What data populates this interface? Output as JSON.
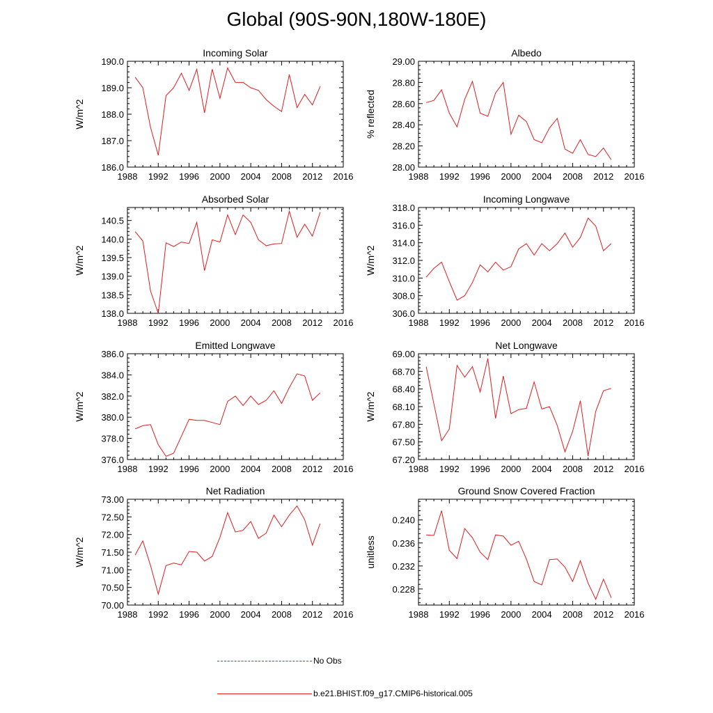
{
  "page": {
    "title": "Global (90S-90N,180W-180E)"
  },
  "legend": {
    "entries": [
      {
        "label": "No Obs",
        "color": "#3b4fd0",
        "style": "dashed"
      },
      {
        "label": "b.e21.BHIST.f09_g17.CMIP6-historical.005",
        "color": "#e41a1c",
        "style": "solid"
      }
    ]
  },
  "chart_data": [
    {
      "type": "line",
      "title": "Incoming Solar",
      "ylabel": "W/m^2",
      "xlim": [
        1988,
        2016
      ],
      "ylim": [
        186.0,
        190.0
      ],
      "xticks": [
        1988,
        1992,
        1996,
        2000,
        2004,
        2008,
        2012,
        2016
      ],
      "xtick_labels": [
        "1988",
        "1992",
        "1996",
        "2000",
        "2004",
        "2008",
        "2012",
        "2016"
      ],
      "yticks": [
        186.0,
        187.0,
        188.0,
        189.0,
        190.0
      ],
      "ytick_labels": [
        "186.0",
        "187.0",
        "188.0",
        "189.0",
        "190.0"
      ],
      "series": [
        {
          "name": "b.e21.BHIST.f09_g17.CMIP6-historical.005",
          "color": "#e41a1c",
          "x": [
            1989,
            1990,
            1991,
            1992,
            1993,
            1994,
            1995,
            1996,
            1997,
            1998,
            1999,
            2000,
            2001,
            2002,
            2003,
            2004,
            2005,
            2006,
            2007,
            2008,
            2009,
            2010,
            2011,
            2012,
            2013
          ],
          "values": [
            189.4,
            189.0,
            187.5,
            186.45,
            188.7,
            189.0,
            189.55,
            188.9,
            189.7,
            188.05,
            189.7,
            188.6,
            189.75,
            189.2,
            189.2,
            189.0,
            188.9,
            188.55,
            188.3,
            188.1,
            189.5,
            188.25,
            188.75,
            188.35,
            189.05
          ]
        }
      ]
    },
    {
      "type": "line",
      "title": "Albedo",
      "ylabel": "% reflected",
      "xlim": [
        1988,
        2016
      ],
      "ylim": [
        28.0,
        29.0
      ],
      "xticks": [
        1988,
        1992,
        1996,
        2000,
        2004,
        2008,
        2012,
        2016
      ],
      "xtick_labels": [
        "1988",
        "1992",
        "1996",
        "2000",
        "2004",
        "2008",
        "2012",
        "2016"
      ],
      "yticks": [
        28.0,
        28.2,
        28.4,
        28.6,
        28.8,
        29.0
      ],
      "ytick_labels": [
        "28.00",
        "28.20",
        "28.40",
        "28.60",
        "28.80",
        "29.00"
      ],
      "series": [
        {
          "name": "b.e21.BHIST.f09_g17.CMIP6-historical.005",
          "color": "#e41a1c",
          "x": [
            1989,
            1990,
            1991,
            1992,
            1993,
            1994,
            1995,
            1996,
            1997,
            1998,
            1999,
            2000,
            2001,
            2002,
            2003,
            2004,
            2005,
            2006,
            2007,
            2008,
            2009,
            2010,
            2011,
            2012,
            2013
          ],
          "values": [
            28.61,
            28.63,
            28.73,
            28.51,
            28.38,
            28.64,
            28.81,
            28.51,
            28.48,
            28.7,
            28.8,
            28.31,
            28.49,
            28.43,
            28.26,
            28.23,
            28.37,
            28.46,
            28.17,
            28.13,
            28.26,
            28.12,
            28.1,
            28.18,
            28.07
          ]
        }
      ]
    },
    {
      "type": "line",
      "title": "Absorbed Solar",
      "ylabel": "W/m^2",
      "xlim": [
        1988,
        2016
      ],
      "ylim": [
        138.0,
        140.85
      ],
      "xticks": [
        1988,
        1992,
        1996,
        2000,
        2004,
        2008,
        2012,
        2016
      ],
      "xtick_labels": [
        "1988",
        "1992",
        "1996",
        "2000",
        "2004",
        "2008",
        "2012",
        "2016"
      ],
      "yticks": [
        138.0,
        138.5,
        139.0,
        139.5,
        140.0,
        140.5
      ],
      "ytick_labels": [
        "138.0",
        "138.5",
        "139.0",
        "139.5",
        "140.0",
        "140.5"
      ],
      "series": [
        {
          "name": "b.e21.BHIST.f09_g17.CMIP6-historical.005",
          "color": "#e41a1c",
          "x": [
            1989,
            1990,
            1991,
            1992,
            1993,
            1994,
            1995,
            1996,
            1997,
            1998,
            1999,
            2000,
            2001,
            2002,
            2003,
            2004,
            2005,
            2006,
            2007,
            2008,
            2009,
            2010,
            2011,
            2012,
            2013
          ],
          "values": [
            140.2,
            139.95,
            138.6,
            138.0,
            139.9,
            139.8,
            139.92,
            139.88,
            140.45,
            139.15,
            139.98,
            139.92,
            140.65,
            140.12,
            140.65,
            140.45,
            139.98,
            139.82,
            139.87,
            139.88,
            140.75,
            140.05,
            140.4,
            140.08,
            140.72
          ]
        }
      ]
    },
    {
      "type": "line",
      "title": "Incoming Longwave",
      "ylabel": "W/m^2",
      "xlim": [
        1988,
        2016
      ],
      "ylim": [
        306.0,
        318.0
      ],
      "xticks": [
        1988,
        1992,
        1996,
        2000,
        2004,
        2008,
        2012,
        2016
      ],
      "xtick_labels": [
        "1988",
        "1992",
        "1996",
        "2000",
        "2004",
        "2008",
        "2012",
        "2016"
      ],
      "yticks": [
        306.0,
        308.0,
        310.0,
        312.0,
        314.0,
        316.0,
        318.0
      ],
      "ytick_labels": [
        "306.0",
        "308.0",
        "310.0",
        "312.0",
        "314.0",
        "316.0",
        "318.0"
      ],
      "series": [
        {
          "name": "b.e21.BHIST.f09_g17.CMIP6-historical.005",
          "color": "#e41a1c",
          "x": [
            1989,
            1990,
            1991,
            1992,
            1993,
            1994,
            1995,
            1996,
            1997,
            1998,
            1999,
            2000,
            2001,
            2002,
            2003,
            2004,
            2005,
            2006,
            2007,
            2008,
            2009,
            2010,
            2011,
            2012,
            2013
          ],
          "values": [
            310.1,
            311.1,
            311.8,
            309.6,
            307.5,
            308.0,
            309.5,
            311.5,
            310.7,
            311.8,
            310.9,
            311.3,
            313.3,
            313.9,
            312.6,
            313.9,
            313.1,
            313.9,
            315.1,
            313.5,
            314.6,
            316.8,
            315.9,
            313.1,
            313.9
          ]
        }
      ]
    },
    {
      "type": "line",
      "title": "Emitted Longwave",
      "ylabel": "W/m^2",
      "xlim": [
        1988,
        2016
      ],
      "ylim": [
        376.0,
        386.0
      ],
      "xticks": [
        1988,
        1992,
        1996,
        2000,
        2004,
        2008,
        2012,
        2016
      ],
      "xtick_labels": [
        "1988",
        "1992",
        "1996",
        "2000",
        "2004",
        "2008",
        "2012",
        "2016"
      ],
      "yticks": [
        376.0,
        378.0,
        380.0,
        382.0,
        384.0,
        386.0
      ],
      "ytick_labels": [
        "376.0",
        "378.0",
        "380.0",
        "382.0",
        "384.0",
        "386.0"
      ],
      "series": [
        {
          "name": "b.e21.BHIST.f09_g17.CMIP6-historical.005",
          "color": "#e41a1c",
          "x": [
            1989,
            1990,
            1991,
            1992,
            1993,
            1994,
            1995,
            1996,
            1997,
            1998,
            1999,
            2000,
            2001,
            2002,
            2003,
            2004,
            2005,
            2006,
            2007,
            2008,
            2009,
            2010,
            2011,
            2012,
            2013
          ],
          "values": [
            378.9,
            379.2,
            379.3,
            377.4,
            376.3,
            376.6,
            378.2,
            379.8,
            379.7,
            379.7,
            379.5,
            379.3,
            381.5,
            382.0,
            381.1,
            382.0,
            381.2,
            381.6,
            382.5,
            381.3,
            382.8,
            384.1,
            383.9,
            381.6,
            382.3
          ]
        }
      ]
    },
    {
      "type": "line",
      "title": "Net Longwave",
      "ylabel": "W/m^2",
      "xlim": [
        1988,
        2016
      ],
      "ylim": [
        67.2,
        69.0
      ],
      "xticks": [
        1988,
        1992,
        1996,
        2000,
        2004,
        2008,
        2012,
        2016
      ],
      "xtick_labels": [
        "1988",
        "1992",
        "1996",
        "2000",
        "2004",
        "2008",
        "2012",
        "2016"
      ],
      "yticks": [
        67.2,
        67.5,
        67.8,
        68.1,
        68.4,
        68.7,
        69.0
      ],
      "ytick_labels": [
        "67.20",
        "67.50",
        "67.80",
        "68.10",
        "68.40",
        "68.70",
        "69.00"
      ],
      "series": [
        {
          "name": "b.e21.BHIST.f09_g17.CMIP6-historical.005",
          "color": "#e41a1c",
          "x": [
            1989,
            1990,
            1991,
            1992,
            1993,
            1994,
            1995,
            1996,
            1997,
            1998,
            1999,
            2000,
            2001,
            2002,
            2003,
            2004,
            2005,
            2006,
            2007,
            2008,
            2009,
            2010,
            2011,
            2012,
            2013
          ],
          "values": [
            68.78,
            68.15,
            67.52,
            67.72,
            68.8,
            68.6,
            68.78,
            68.35,
            68.92,
            67.9,
            68.62,
            67.98,
            68.05,
            68.07,
            68.52,
            68.06,
            68.1,
            67.78,
            67.33,
            67.68,
            68.2,
            67.26,
            68.02,
            68.37,
            68.41
          ]
        }
      ]
    },
    {
      "type": "line",
      "title": "Net Radiation",
      "ylabel": "W/m^2",
      "xlim": [
        1988,
        2016
      ],
      "ylim": [
        70.0,
        73.0
      ],
      "xticks": [
        1988,
        1992,
        1996,
        2000,
        2004,
        2008,
        2012,
        2016
      ],
      "xtick_labels": [
        "1988",
        "1992",
        "1996",
        "2000",
        "2004",
        "2008",
        "2012",
        "2016"
      ],
      "yticks": [
        70.0,
        70.5,
        71.0,
        71.5,
        72.0,
        72.5,
        73.0
      ],
      "ytick_labels": [
        "70.00",
        "70.50",
        "71.00",
        "71.50",
        "72.00",
        "72.50",
        "73.00"
      ],
      "series": [
        {
          "name": "b.e21.BHIST.f09_g17.CMIP6-historical.005",
          "color": "#e41a1c",
          "x": [
            1989,
            1990,
            1991,
            1992,
            1993,
            1994,
            1995,
            1996,
            1997,
            1998,
            1999,
            2000,
            2001,
            2002,
            2003,
            2004,
            2005,
            2006,
            2007,
            2008,
            2009,
            2010,
            2011,
            2012,
            2013
          ],
          "values": [
            71.42,
            71.82,
            71.12,
            70.31,
            71.12,
            71.19,
            71.14,
            71.52,
            71.5,
            71.25,
            71.38,
            71.92,
            72.62,
            72.07,
            72.12,
            72.37,
            71.89,
            72.04,
            72.55,
            72.22,
            72.55,
            72.81,
            72.42,
            71.7,
            72.31
          ]
        }
      ]
    },
    {
      "type": "line",
      "title": "Ground Snow Covered Fraction",
      "ylabel": "unitless",
      "xlim": [
        1988,
        2016
      ],
      "ylim": [
        0.2252,
        0.2436
      ],
      "xticks": [
        1988,
        1992,
        1996,
        2000,
        2004,
        2008,
        2012,
        2016
      ],
      "xtick_labels": [
        "1988",
        "1992",
        "1996",
        "2000",
        "2004",
        "2008",
        "2012",
        "2016"
      ],
      "yticks": [
        0.228,
        0.232,
        0.236,
        0.24
      ],
      "ytick_labels": [
        "0.228",
        "0.232",
        "0.236",
        "0.240"
      ],
      "series": [
        {
          "name": "b.e21.BHIST.f09_g17.CMIP6-historical.005",
          "color": "#e41a1c",
          "x": [
            1989,
            1990,
            1991,
            1992,
            1993,
            1994,
            1995,
            1996,
            1997,
            1998,
            1999,
            2000,
            2001,
            2002,
            2003,
            2004,
            2005,
            2006,
            2007,
            2008,
            2009,
            2010,
            2011,
            2012,
            2013
          ],
          "values": [
            0.2374,
            0.2373,
            0.2416,
            0.2347,
            0.2333,
            0.2385,
            0.2369,
            0.2344,
            0.2331,
            0.2374,
            0.2372,
            0.2356,
            0.2363,
            0.2332,
            0.2293,
            0.2287,
            0.2331,
            0.2332,
            0.2318,
            0.2293,
            0.2329,
            0.229,
            0.2262,
            0.2297,
            0.2265
          ]
        }
      ]
    }
  ]
}
